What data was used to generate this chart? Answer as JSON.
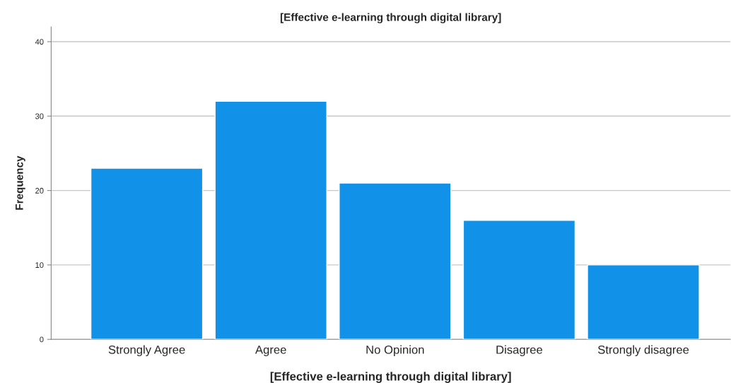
{
  "chart_data": {
    "type": "bar",
    "title": "[Effective e-learning through digital library]",
    "xlabel": "[Effective e-learning through digital library]",
    "ylabel": "Frequency",
    "categories": [
      "Strongly Agree",
      "Agree",
      "No Opinion",
      "Disagree",
      "Strongly disagree"
    ],
    "values": [
      23,
      32,
      21,
      16,
      10
    ],
    "color": "#1192e8",
    "ylim": [
      0,
      42
    ],
    "yticks": [
      0,
      10,
      20,
      30,
      40
    ],
    "grid": "y"
  }
}
